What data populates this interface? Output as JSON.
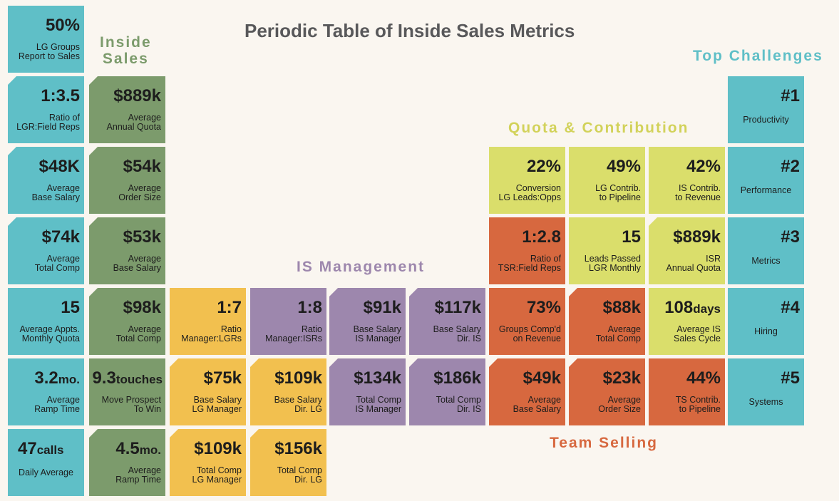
{
  "title": "Periodic Table of Inside Sales Metrics",
  "colors": {
    "teal": "#5fbfc7",
    "green": "#7c9b6c",
    "yellow": "#f2c04f",
    "purple": "#9d87ad",
    "lime": "#dade6b",
    "orange": "#d7683f",
    "background": "#faf6f0"
  },
  "groups": {
    "inside_sales": "Inside\nSales",
    "top_challenges": "Top Challenges",
    "quota_contribution": "Quota & Contribution",
    "is_management": "IS Management",
    "team_selling": "Team Selling"
  },
  "cells": [
    {
      "value": "50%",
      "label": "LG Groups\nReport to Sales"
    },
    {
      "value": "1:3.5",
      "label": "Ratio of\nLGR:Field Reps"
    },
    {
      "value": "$48K",
      "label": "Average\nBase Salary"
    },
    {
      "value": "$74k",
      "label": "Average\nTotal Comp"
    },
    {
      "value": "15",
      "label": "Average Appts.\nMonthly Quota"
    },
    {
      "value": "3.2",
      "unit": "mo.",
      "label": "Average\nRamp Time"
    },
    {
      "value": "47",
      "unit": "calls",
      "label": "Daily Average"
    },
    {
      "value": "$889k",
      "label": "Average\nAnnual Quota"
    },
    {
      "value": "$54k",
      "label": "Average\nOrder Size"
    },
    {
      "value": "$53k",
      "label": "Average\nBase Salary"
    },
    {
      "value": "$98k",
      "label": "Average\nTotal Comp"
    },
    {
      "value": "9.3",
      "unit": "touches",
      "label": "Move Prospect\nTo Win"
    },
    {
      "value": "4.5",
      "unit": "mo.",
      "label": "Average\nRamp Time"
    },
    {
      "value": "1:7",
      "label": "Ratio\nManager:LGRs"
    },
    {
      "value": "$75k",
      "label": "Base Salary\nLG Manager"
    },
    {
      "value": "$109k",
      "label": "Total Comp\nLG Manager"
    },
    {
      "value": "$109k",
      "label": "Base Salary\nDir. LG"
    },
    {
      "value": "$156k",
      "label": "Total Comp\nDir. LG"
    },
    {
      "value": "1:8",
      "label": "Ratio\nManager:ISRs"
    },
    {
      "value": "$91k",
      "label": "Base Salary\nIS Manager"
    },
    {
      "value": "$117k",
      "label": "Base Salary\nDir. IS"
    },
    {
      "value": "$134k",
      "label": "Total Comp\nIS Manager"
    },
    {
      "value": "$186k",
      "label": "Total Comp\nDir. IS"
    },
    {
      "value": "22%",
      "label": "Conversion\nLG Leads:Opps"
    },
    {
      "value": "49%",
      "label": "LG Contrib.\nto Pipeline"
    },
    {
      "value": "42%",
      "label": "IS Contrib.\nto Revenue"
    },
    {
      "value": "15",
      "label": "Leads Passed\nLGR Monthly"
    },
    {
      "value": "$889k",
      "label": "ISR\nAnnual Quota"
    },
    {
      "value": "108",
      "unit": "days",
      "label": "Average IS\nSales Cycle"
    },
    {
      "value": "1:2.8",
      "label": "Ratio of\nTSR:Field Reps"
    },
    {
      "value": "73%",
      "label": "Groups Comp'd\non Revenue"
    },
    {
      "value": "$88k",
      "label": "Average\nTotal Comp"
    },
    {
      "value": "$49k",
      "label": "Average\nBase Salary"
    },
    {
      "value": "$23k",
      "label": "Average\nOrder Size"
    },
    {
      "value": "44%",
      "label": "TS Contrib.\nto Pipeline"
    },
    {
      "value": "#1",
      "label": "Productivity"
    },
    {
      "value": "#2",
      "label": "Performance"
    },
    {
      "value": "#3",
      "label": "Metrics"
    },
    {
      "value": "#4",
      "label": "Hiring"
    },
    {
      "value": "#5",
      "label": "Systems"
    }
  ]
}
